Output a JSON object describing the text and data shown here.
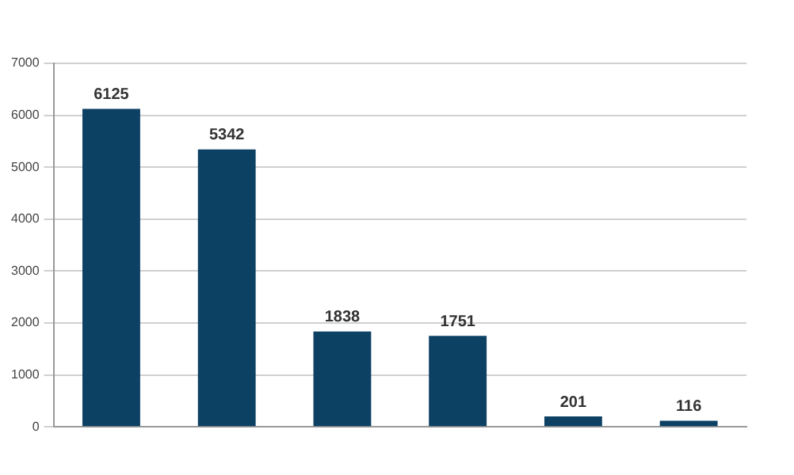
{
  "chart_data": {
    "type": "bar",
    "categories": [
      null,
      null,
      null,
      null,
      null,
      null
    ],
    "values": [
      6125,
      5342,
      1838,
      1751,
      201,
      116
    ],
    "color": "#0c4164",
    "ylim": [
      0,
      7000
    ],
    "yticks": [
      0,
      1000,
      2000,
      3000,
      4000,
      5000,
      6000,
      7000
    ],
    "grid": "y",
    "data_labels": true,
    "legend": false
  }
}
